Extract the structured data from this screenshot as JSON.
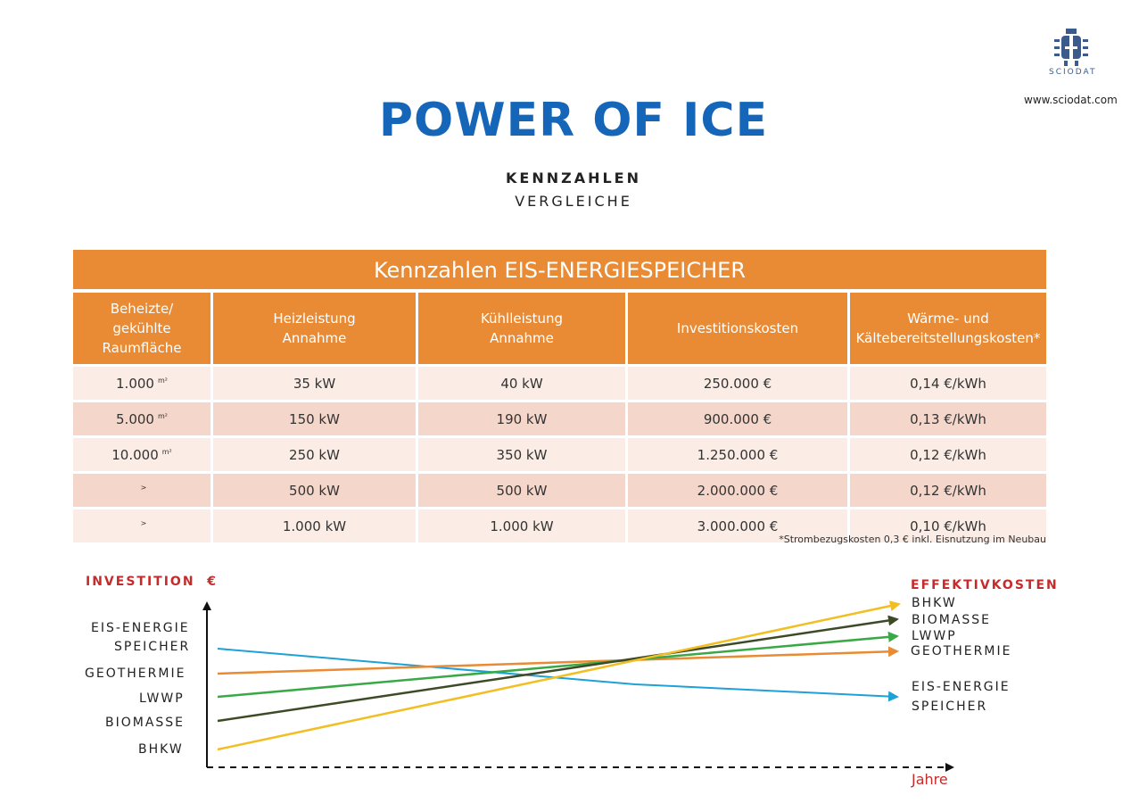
{
  "header": {
    "logo_text": "SCIODAT",
    "website": "www.sciodat.com",
    "title": "POWER OF ICE",
    "subtitle1": "KENNZAHLEN",
    "subtitle2": "VERGLEICHE"
  },
  "table": {
    "title": "Kennzahlen EIS-ENERGIESPEICHER",
    "headers": [
      [
        "Beheizte/",
        "gekühlte",
        "Raumfläche"
      ],
      [
        "Heizleistung",
        "Annahme"
      ],
      [
        "Kühlleistung",
        "Annahme"
      ],
      [
        "Investitionskosten"
      ],
      [
        "Wärme- und",
        "Kältebereitstellungskosten*"
      ]
    ],
    "rows": [
      {
        "area": "1.000",
        "unit": "m²",
        "heat": "35 kW",
        "cool": "40 kW",
        "invest": "250.000 €",
        "cost": "0,14 €/kWh"
      },
      {
        "area": "5.000",
        "unit": "m²",
        "heat": "150 kW",
        "cool": "190 kW",
        "invest": "900.000 €",
        "cost": "0,13 €/kWh"
      },
      {
        "area": "10.000",
        "unit": "m²",
        "heat": "250 kW",
        "cool": "350 kW",
        "invest": "1.250.000 €",
        "cost": "0,12 €/kWh"
      },
      {
        "area": "",
        "unit": ">",
        "heat": "500 kW",
        "cool": "500 kW",
        "invest": "2.000.000 €",
        "cost": "0,12 €/kWh"
      },
      {
        "area": "",
        "unit": ">",
        "heat": "1.000 kW",
        "cool": "1.000 kW",
        "invest": "3.000.000 €",
        "cost": "0,10 €/kWh"
      }
    ],
    "footnote": "*Strombezugskosten 0,3 € inkl. Eisnutzung im Neubau"
  },
  "graph": {
    "y_label": "INVESTITION",
    "y_unit": "€",
    "x_label": "Jahre",
    "right_title": "EFFEKTIVKOSTEN",
    "left_labels": [
      "EIS-ENERGIE",
      "SPEICHER",
      "GEOTHERMIE",
      "LWWP",
      "BIOMASSE",
      "BHKW"
    ],
    "right_labels": [
      "BHKW",
      "BIOMASSE",
      "LWWP",
      "GEOTHERMIE",
      "EIS-ENERGIE",
      "SPEICHER"
    ],
    "colors": {
      "eis": "#1ea1d6",
      "geothermie": "#e88b34",
      "lwwp": "#3aa845",
      "biomasse": "#3c4a26",
      "bhkw": "#f2be22"
    }
  }
}
